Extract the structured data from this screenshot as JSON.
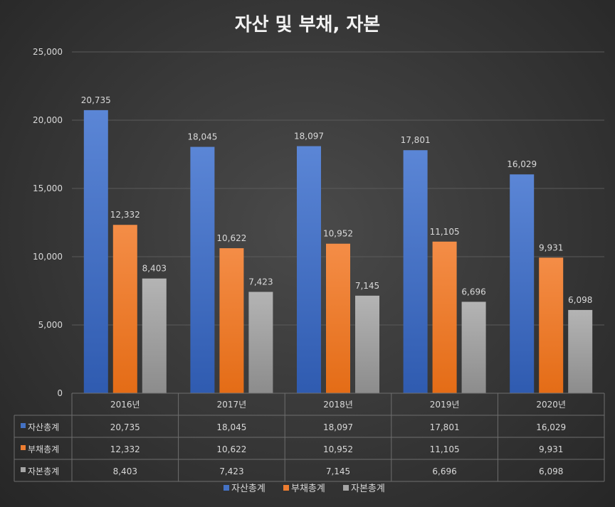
{
  "chart_data": {
    "type": "bar",
    "title": "자산 및 부채, 자본",
    "categories": [
      "2016년",
      "2017년",
      "2018년",
      "2019년",
      "2020년"
    ],
    "series": [
      {
        "name": "자산총계",
        "values": [
          20735,
          18045,
          18097,
          17801,
          16029
        ],
        "labels": [
          "20,735",
          "18,045",
          "18,097",
          "17,801",
          "16,029"
        ],
        "color": "#4472C4"
      },
      {
        "name": "부채총계",
        "values": [
          12332,
          10622,
          10952,
          11105,
          9931
        ],
        "labels": [
          "12,332",
          "10,622",
          "10,952",
          "11,105",
          "9,931"
        ],
        "color": "#ED7D31"
      },
      {
        "name": "자본총계",
        "values": [
          8403,
          7423,
          7145,
          6696,
          6098
        ],
        "labels": [
          "8,403",
          "7,423",
          "7,145",
          "6,696",
          "6,098"
        ],
        "color": "#A5A5A5"
      }
    ],
    "ylim": [
      0,
      25000
    ],
    "yticks": [
      0,
      5000,
      10000,
      15000,
      20000,
      25000
    ],
    "ytick_labels": [
      "0",
      "5,000",
      "10,000",
      "15,000",
      "20,000",
      "25,000"
    ],
    "grid": true,
    "data_table": true,
    "legend": "bottom"
  }
}
